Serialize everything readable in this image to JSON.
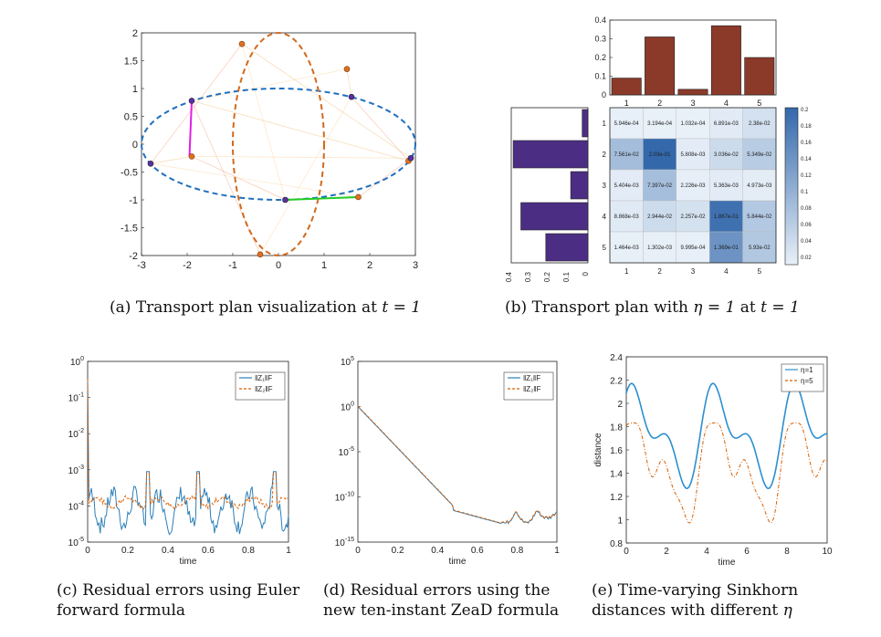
{
  "captions": {
    "a": {
      "label": "(a)",
      "text": "Transport plan visualization at",
      "math": "t = 1"
    },
    "b": {
      "label": "(b)",
      "text": "Transport plan with",
      "math1": "η = 1",
      "mid": "at",
      "math2": "t = 1"
    },
    "c": {
      "label": "(c)",
      "line1": "Residual errors using Euler",
      "line2": "forward formula"
    },
    "d": {
      "label": "(d)",
      "line1": "Residual errors using the",
      "line2": "new ten-instant ZeaD formula"
    },
    "e": {
      "label": "(e)",
      "line1": "Time-varying     Sinkhorn",
      "line2": "distances with different",
      "math": "η"
    }
  },
  "chart_data": [
    {
      "id": "a",
      "type": "scatter",
      "xlim": [
        -3,
        3
      ],
      "ylim": [
        -2,
        2
      ],
      "xticks": [
        "-3",
        "-2",
        "-1",
        "0",
        "1",
        "2",
        "3"
      ],
      "yticks": [
        "2",
        "1.5",
        "1",
        "0.5",
        "0",
        "-0.5",
        "-1",
        "-1.5",
        "-2"
      ],
      "ellipse_blue": {
        "cx": 0,
        "cy": 0,
        "rx": 3,
        "ry": 1
      },
      "ellipse_orange": {
        "cx": 0,
        "cy": 0,
        "rx": 1,
        "ry": 2
      },
      "points_source": [
        [
          -2.8,
          -0.35
        ],
        [
          -1.9,
          0.78
        ],
        [
          0.15,
          -1.0
        ],
        [
          1.6,
          0.85
        ],
        [
          2.9,
          -0.25
        ]
      ],
      "points_target": [
        [
          -1.9,
          -0.22
        ],
        [
          -0.4,
          -1.98
        ],
        [
          -0.8,
          1.8
        ],
        [
          1.5,
          1.35
        ],
        [
          1.75,
          -0.95
        ],
        [
          2.85,
          -0.3
        ]
      ],
      "highlight_lines": [
        {
          "from": [
            -1.95,
            -0.22
          ],
          "to": [
            -1.9,
            0.78
          ],
          "color": "#e41ee4"
        },
        {
          "from": [
            0.15,
            -1.0
          ],
          "to": [
            1.75,
            -0.95
          ],
          "color": "#22cc22"
        }
      ]
    },
    {
      "id": "b",
      "type": "heatmap",
      "cells": [
        [
          "5.946e-04",
          "3.194e-04",
          "1.032e-04",
          "6.891e-03",
          "2.38e-02"
        ],
        [
          "7.561e-02",
          "2.03e-01",
          "5.808e-03",
          "3.036e-02",
          "5.349e-02"
        ],
        [
          "5.404e-03",
          "7.397e-02",
          "2.226e-03",
          "5.363e-03",
          "4.973e-03"
        ],
        [
          "8.868e-03",
          "2.944e-02",
          "2.257e-02",
          "1.867e-01",
          "5.844e-02"
        ],
        [
          "1.464e-03",
          "1.302e-03",
          "9.995e-04",
          "1.369e-01",
          "5.93e-02"
        ]
      ],
      "values": [
        [
          0.000595,
          0.000319,
          0.000103,
          0.00689,
          0.0238
        ],
        [
          0.0756,
          0.203,
          0.00581,
          0.0304,
          0.0535
        ],
        [
          0.0054,
          0.074,
          0.00223,
          0.00536,
          0.00497
        ],
        [
          0.00887,
          0.0294,
          0.0226,
          0.1867,
          0.0584
        ],
        [
          0.00146,
          0.0013,
          0.001,
          0.1369,
          0.0593
        ]
      ],
      "row_labels": [
        "1",
        "2",
        "3",
        "4",
        "5"
      ],
      "col_labels": [
        "1",
        "2",
        "3",
        "4",
        "5"
      ],
      "top_bars": [
        0.09,
        0.31,
        0.03,
        0.37,
        0.2
      ],
      "top_bar_ylim": [
        0,
        0.4
      ],
      "top_bar_yticks": [
        "0.4",
        "0.3",
        "0.2",
        "0.1",
        "0"
      ],
      "top_bar_color": "#8b3a2a",
      "left_bars": [
        0.03,
        0.39,
        0.09,
        0.35,
        0.22
      ],
      "left_bar_xticks": [
        "0.4",
        "0.3",
        "0.2",
        "0.1",
        "0"
      ],
      "left_bar_color": "#4b2e83",
      "colorbar_ticks": [
        "0.2",
        "0.18",
        "0.16",
        "0.14",
        "0.12",
        "0.1",
        "0.08",
        "0.06",
        "0.04",
        "0.02"
      ]
    },
    {
      "id": "c",
      "type": "line",
      "xlabel": "time",
      "xlim": [
        0,
        1
      ],
      "ylim_exp": [
        -5,
        0
      ],
      "xticks": [
        "0",
        "0.2",
        "0.4",
        "0.6",
        "0.8",
        "1"
      ],
      "yticks": [
        "10",
        "10",
        "10",
        "10",
        "10",
        "10"
      ],
      "ytick_exp": [
        "0",
        "-1",
        "-2",
        "-3",
        "-4",
        "-5"
      ],
      "series": [
        {
          "name": "‖Z₁‖F",
          "color": "#2c7fb8"
        },
        {
          "name": "‖Z₂‖F",
          "color": "#d95f02"
        }
      ]
    },
    {
      "id": "d",
      "type": "line",
      "xlabel": "time",
      "xlim": [
        0,
        1
      ],
      "ylim_exp": [
        -15,
        5
      ],
      "xticks": [
        "0",
        "0.2",
        "0.4",
        "0.6",
        "0.8",
        "1"
      ],
      "yticks": [
        "10",
        "10",
        "10",
        "10",
        "10"
      ],
      "ytick_exp": [
        "5",
        "0",
        "-5",
        "-10",
        "-15"
      ],
      "series": [
        {
          "name": "‖Z₁‖F",
          "color": "#2c7fb8"
        },
        {
          "name": "‖Z₂‖F",
          "color": "#d95f02"
        }
      ]
    },
    {
      "id": "e",
      "type": "line",
      "xlabel": "time",
      "ylabel": "distance",
      "xlim": [
        0,
        10
      ],
      "ylim": [
        0.8,
        2.4
      ],
      "xticks": [
        "0",
        "2",
        "4",
        "6",
        "8",
        "10"
      ],
      "yticks": [
        "2.4",
        "2.2",
        "2",
        "1.8",
        "1.6",
        "1.4",
        "1.2",
        "1",
        "0.8"
      ],
      "series": [
        {
          "name": "η=1",
          "color": "#2c8fd0"
        },
        {
          "name": "η=5",
          "color": "#d95f02"
        }
      ]
    }
  ]
}
